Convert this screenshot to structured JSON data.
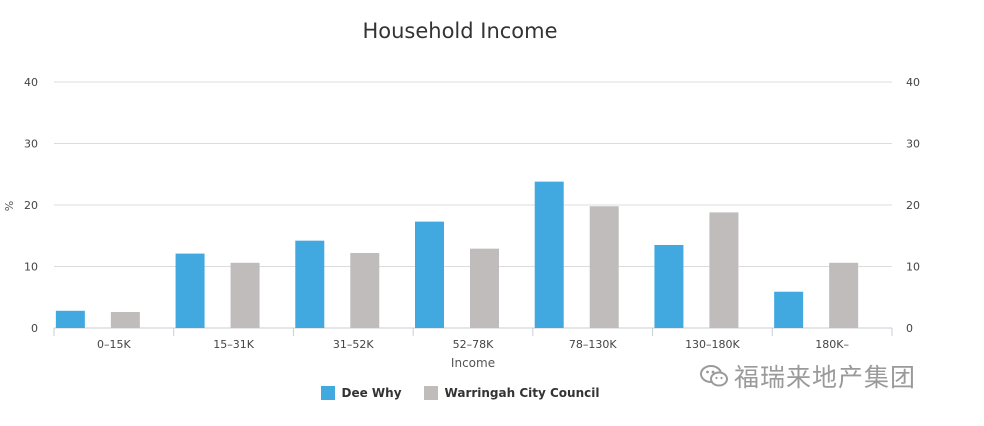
{
  "chart_data": {
    "type": "bar",
    "title": "Household Income",
    "xlabel": "Income",
    "ylabel": "%",
    "ylim": [
      0,
      40
    ],
    "yticks": [
      0,
      10,
      20,
      30,
      40
    ],
    "grid": true,
    "legend_position": "bottom-center",
    "categories": [
      "0–15K",
      "15–31K",
      "31–52K",
      "52–78K",
      "78–130K",
      "130–180K",
      "180K–"
    ],
    "series": [
      {
        "name": "Dee Why",
        "color": "#42a9e0",
        "values": [
          2.8,
          12.1,
          14.2,
          17.3,
          23.8,
          13.5,
          5.9
        ]
      },
      {
        "name": "Warringah City Council",
        "color": "#c1bcbc",
        "values": [
          2.6,
          10.6,
          12.2,
          12.9,
          19.8,
          18.8,
          10.6
        ]
      }
    ]
  },
  "watermark": {
    "text": "福瑞来地产集团",
    "icon": "wechat-icon"
  }
}
